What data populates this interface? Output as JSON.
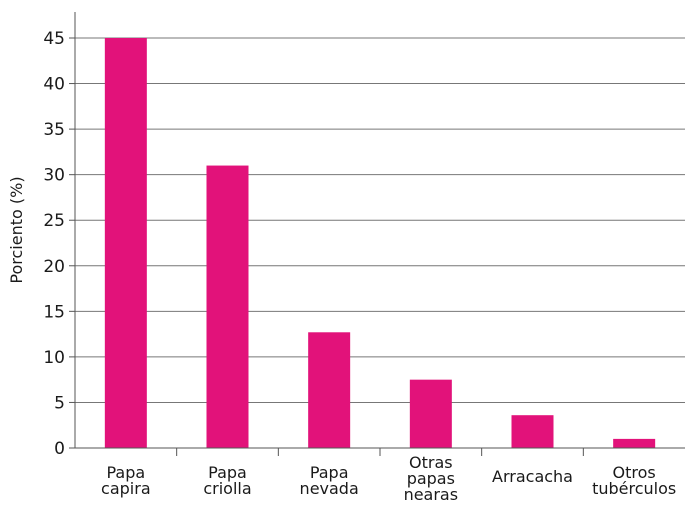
{
  "chart_data": {
    "type": "bar",
    "categories": [
      [
        "Papa",
        "capira"
      ],
      [
        "Papa",
        "criolla"
      ],
      [
        "Papa",
        "nevada"
      ],
      [
        "Otras",
        "papas",
        "nearas"
      ],
      [
        "Arracacha"
      ],
      [
        "Otros",
        "tubérculos"
      ]
    ],
    "values": [
      45,
      31,
      12.7,
      7.5,
      3.6,
      1.0
    ],
    "xlabel": "",
    "ylabel": "Porciento (%)",
    "ylim": [
      0,
      45
    ],
    "yticks": [
      0,
      5,
      10,
      15,
      20,
      25,
      30,
      35,
      40,
      45
    ],
    "grid": "horizontal",
    "colors": {
      "bar": "#e2127a",
      "axis": "#555555",
      "grid": "#777777"
    }
  }
}
